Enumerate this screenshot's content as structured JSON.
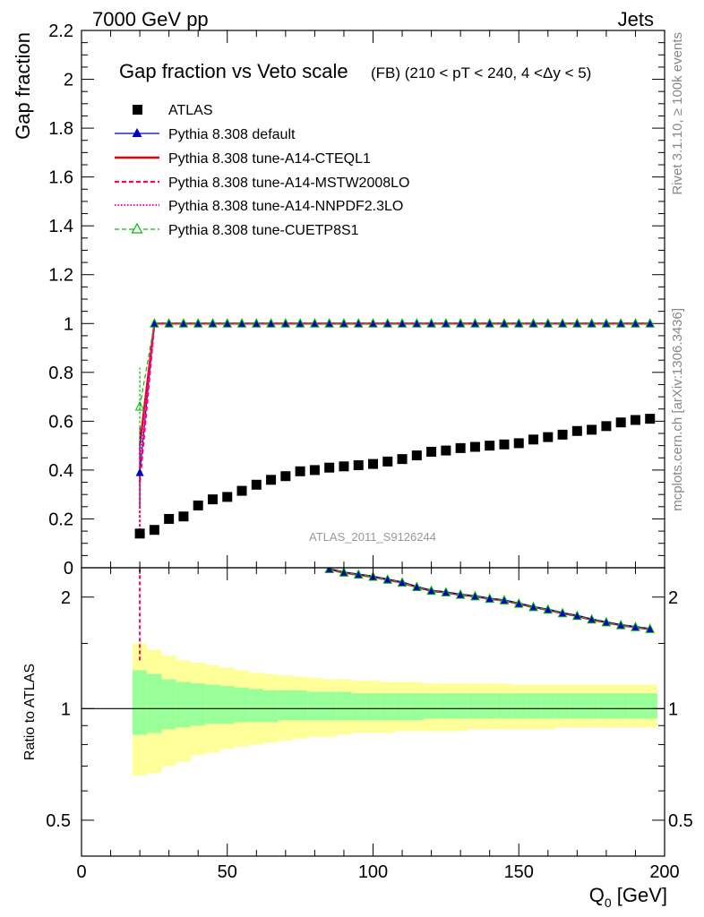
{
  "header": {
    "left": "7000 GeV pp",
    "right": "Jets"
  },
  "side_labels": {
    "rivet": "Rivet 3.1.10, ≥ 100k events",
    "mcplots": "mcplots.cern.ch [arXiv:1306.3436]"
  },
  "colors": {
    "atlas": "#000000",
    "default": "#0000cc",
    "cteql1": "#ee0000",
    "mstw": "#ff0066",
    "nnpdf": "#ff00cc",
    "cuetp8s1": "#00bb00",
    "band_inner": "#99ff99",
    "band_outer": "#ffff99"
  },
  "chart_data": [
    {
      "type": "scatter",
      "panel": "main",
      "title": "Gap fraction vs Veto scale",
      "subtitle": "(FB) (210 < pT < 240, 4 <Δy < 5)",
      "analysis_label": "ATLAS_2011_S9126244",
      "ylabel": "Gap fraction",
      "ylim": [
        0,
        2.2
      ],
      "yticks": [
        0,
        0.2,
        0.4,
        0.6,
        0.8,
        1,
        1.2,
        1.4,
        1.6,
        1.8,
        2,
        2.2
      ],
      "xlim": [
        0,
        200
      ],
      "legend": [
        "ATLAS",
        "Pythia 8.308 default",
        "Pythia 8.308 tune-A14-CTEQL1",
        "Pythia 8.308 tune-A14-MSTW2008LO",
        "Pythia 8.308 tune-A14-NNPDF2.3LO",
        "Pythia 8.308 tune-CUETP8S1"
      ],
      "x": [
        20,
        25,
        30,
        35,
        40,
        45,
        50,
        55,
        60,
        65,
        70,
        75,
        80,
        85,
        90,
        95,
        100,
        105,
        110,
        115,
        120,
        125,
        130,
        135,
        140,
        145,
        150,
        155,
        160,
        165,
        170,
        175,
        180,
        185,
        190,
        195
      ],
      "atlas": [
        0.14,
        0.155,
        0.2,
        0.21,
        0.255,
        0.28,
        0.29,
        0.315,
        0.34,
        0.36,
        0.375,
        0.395,
        0.4,
        0.41,
        0.415,
        0.42,
        0.425,
        0.435,
        0.445,
        0.46,
        0.475,
        0.48,
        0.49,
        0.495,
        0.5,
        0.505,
        0.51,
        0.525,
        0.535,
        0.545,
        0.56,
        0.565,
        0.58,
        0.595,
        0.605,
        0.61
      ],
      "series": [
        {
          "name": "Pythia 8.308 default",
          "values": [
            0.39,
            1,
            1,
            1,
            1,
            1,
            1,
            1,
            1,
            1,
            1,
            1,
            1,
            1,
            1,
            1,
            1,
            1,
            1,
            1,
            1,
            1,
            1,
            1,
            1,
            1,
            1,
            1,
            1,
            1,
            1,
            1,
            1,
            1,
            1,
            1
          ]
        },
        {
          "name": "Pythia 8.308 tune-A14-CTEQL1",
          "values": [
            0.5,
            1,
            1,
            1,
            1,
            1,
            1,
            1,
            1,
            1,
            1,
            1,
            1,
            1,
            1,
            1,
            1,
            1,
            1,
            1,
            1,
            1,
            1,
            1,
            1,
            1,
            1,
            1,
            1,
            1,
            1,
            1,
            1,
            1,
            1,
            1
          ]
        },
        {
          "name": "Pythia 8.308 tune-A14-MSTW2008LO",
          "values": [
            0.35,
            1,
            1,
            1,
            1,
            1,
            1,
            1,
            1,
            1,
            1,
            1,
            1,
            1,
            1,
            1,
            1,
            1,
            1,
            1,
            1,
            1,
            1,
            1,
            1,
            1,
            1,
            1,
            1,
            1,
            1,
            1,
            1,
            1,
            1,
            1
          ]
        },
        {
          "name": "Pythia 8.308 tune-A14-NNPDF2.3LO",
          "values": [
            0.45,
            1,
            1,
            1,
            1,
            1,
            1,
            1,
            1,
            1,
            1,
            1,
            1,
            1,
            1,
            1,
            1,
            1,
            1,
            1,
            1,
            1,
            1,
            1,
            1,
            1,
            1,
            1,
            1,
            1,
            1,
            1,
            1,
            1,
            1,
            1
          ]
        },
        {
          "name": "Pythia 8.308 tune-CUETP8S1",
          "values": [
            0.66,
            1,
            1,
            1,
            1,
            1,
            1,
            1,
            1,
            1,
            1,
            1,
            1,
            1,
            1,
            1,
            1,
            1,
            1,
            1,
            1,
            1,
            1,
            1,
            1,
            1,
            1,
            1,
            1,
            1,
            1,
            1,
            1,
            1,
            1,
            1
          ]
        }
      ]
    },
    {
      "type": "line",
      "panel": "ratio",
      "ylabel": "Ratio to ATLAS",
      "xlabel": "Q",
      "xlabel_sub": "0",
      "xlabel_unit": " [GeV]",
      "ylim": [
        0.4,
        2.4
      ],
      "yscale": "log",
      "yticks": [
        0.5,
        1,
        2
      ],
      "xlim": [
        0,
        200
      ],
      "xticks": [
        0,
        50,
        100,
        150,
        200
      ],
      "x": [
        85,
        90,
        95,
        100,
        105,
        110,
        115,
        120,
        125,
        130,
        135,
        140,
        145,
        150,
        155,
        160,
        165,
        170,
        175,
        180,
        185,
        190,
        195
      ],
      "ratio_values": [
        2.38,
        2.33,
        2.3,
        2.27,
        2.23,
        2.19,
        2.13,
        2.08,
        2.06,
        2.03,
        2.01,
        1.98,
        1.96,
        1.92,
        1.88,
        1.85,
        1.81,
        1.78,
        1.74,
        1.71,
        1.68,
        1.66,
        1.64
      ],
      "band_bins": [
        17.5,
        22.5,
        27.5,
        32.5,
        37.5,
        42.5,
        47.5,
        52.5,
        57.5,
        62.5,
        67.5,
        72.5,
        77.5,
        82.5,
        87.5,
        92.5,
        97.5,
        102.5,
        107.5,
        112.5,
        117.5,
        122.5,
        127.5,
        132.5,
        137.5,
        142.5,
        147.5,
        152.5,
        157.5,
        162.5,
        167.5,
        172.5,
        177.5,
        182.5,
        187.5,
        192.5,
        197.5
      ],
      "stat_band": {
        "low": [
          0.85,
          0.86,
          0.88,
          0.89,
          0.9,
          0.91,
          0.91,
          0.92,
          0.92,
          0.92,
          0.93,
          0.93,
          0.93,
          0.93,
          0.93,
          0.93,
          0.93,
          0.93,
          0.93,
          0.93,
          0.94,
          0.94,
          0.94,
          0.94,
          0.94,
          0.94,
          0.94,
          0.94,
          0.94,
          0.94,
          0.94,
          0.94,
          0.94,
          0.94,
          0.94,
          0.94
        ],
        "high": [
          1.27,
          1.24,
          1.2,
          1.18,
          1.17,
          1.16,
          1.15,
          1.14,
          1.13,
          1.12,
          1.12,
          1.12,
          1.11,
          1.11,
          1.11,
          1.1,
          1.1,
          1.1,
          1.1,
          1.1,
          1.1,
          1.1,
          1.1,
          1.1,
          1.1,
          1.1,
          1.1,
          1.1,
          1.1,
          1.1,
          1.1,
          1.1,
          1.1,
          1.1,
          1.1,
          1.1
        ]
      },
      "total_band": {
        "low": [
          0.66,
          0.67,
          0.7,
          0.72,
          0.75,
          0.76,
          0.78,
          0.79,
          0.8,
          0.81,
          0.82,
          0.83,
          0.84,
          0.84,
          0.85,
          0.86,
          0.86,
          0.86,
          0.87,
          0.87,
          0.87,
          0.87,
          0.87,
          0.88,
          0.88,
          0.88,
          0.88,
          0.88,
          0.88,
          0.89,
          0.89,
          0.89,
          0.89,
          0.89,
          0.89,
          0.89
        ],
        "high": [
          1.5,
          1.44,
          1.39,
          1.35,
          1.33,
          1.31,
          1.29,
          1.27,
          1.25,
          1.24,
          1.23,
          1.22,
          1.21,
          1.2,
          1.2,
          1.19,
          1.19,
          1.18,
          1.18,
          1.18,
          1.17,
          1.17,
          1.17,
          1.17,
          1.17,
          1.17,
          1.16,
          1.16,
          1.16,
          1.16,
          1.16,
          1.16,
          1.16,
          1.16,
          1.16,
          1.16
        ]
      }
    }
  ]
}
